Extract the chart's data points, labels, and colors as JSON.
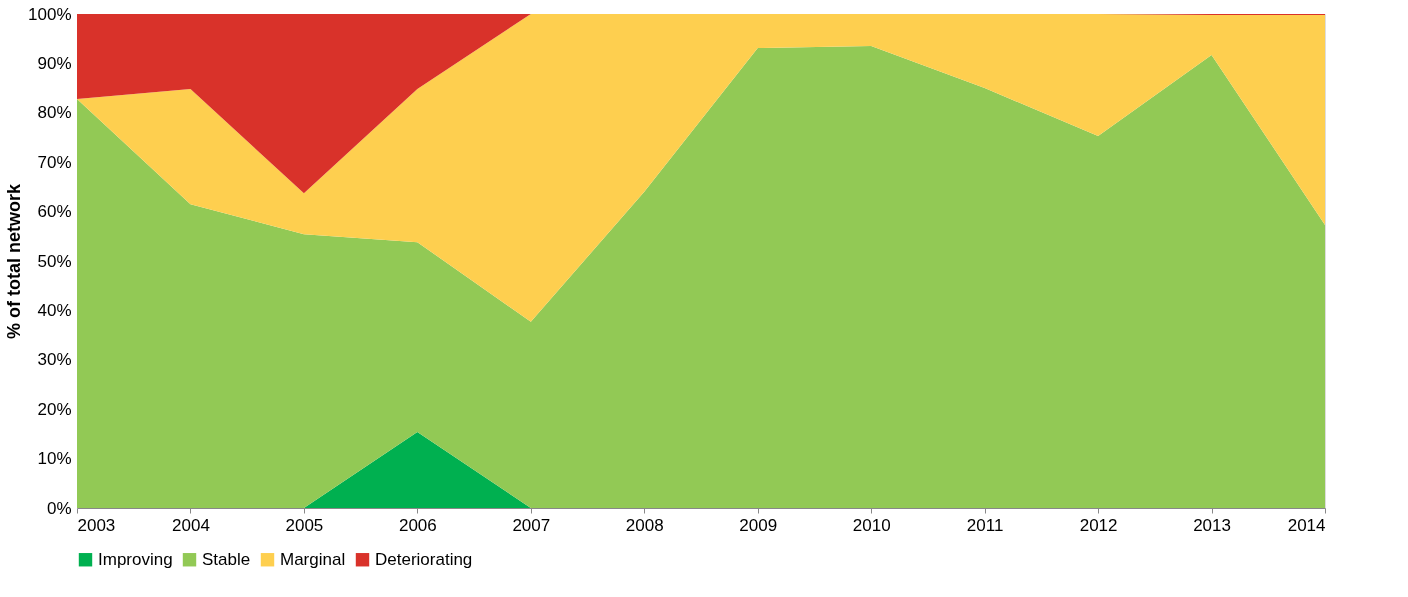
{
  "chart_data": {
    "type": "area",
    "stacked": true,
    "ylabel": "% of total network",
    "categories": [
      "2003",
      "2004",
      "2005",
      "2006",
      "2007",
      "2008",
      "2009",
      "2010",
      "2011",
      "2012",
      "2013",
      "2014"
    ],
    "series": [
      {
        "name": "Improving",
        "color": "#00b050",
        "values": [
          0,
          0,
          0,
          15.4,
          0,
          0,
          0,
          0,
          0,
          0,
          0,
          0
        ]
      },
      {
        "name": "Stable",
        "color": "#92c955",
        "values": [
          82.8,
          61.5,
          55.4,
          38.4,
          37.7,
          64,
          93.1,
          93.5,
          85,
          75.3,
          91.7,
          57.3
        ]
      },
      {
        "name": "Marginal",
        "color": "#fecf4f",
        "values": [
          0,
          23.3,
          8.3,
          31,
          62.3,
          36,
          6.9,
          6.5,
          15,
          24.7,
          8.1,
          42.5
        ]
      },
      {
        "name": "Deteriorating",
        "color": "#d9322a",
        "values": [
          17.2,
          15.2,
          36.3,
          15.2,
          0,
          0,
          0,
          0,
          0,
          0,
          0.2,
          0.2
        ]
      }
    ],
    "ylim": [
      0,
      100
    ],
    "yticks": [
      {
        "value": 0,
        "label": "0%"
      },
      {
        "value": 10,
        "label": "10%"
      },
      {
        "value": 20,
        "label": "20%"
      },
      {
        "value": 30,
        "label": "30%"
      },
      {
        "value": 40,
        "label": "40%"
      },
      {
        "value": 50,
        "label": "50%"
      },
      {
        "value": 60,
        "label": "60%"
      },
      {
        "value": 70,
        "label": "70%"
      },
      {
        "value": 80,
        "label": "80%"
      },
      {
        "value": 90,
        "label": "90%"
      },
      {
        "value": 100,
        "label": "100%"
      }
    ],
    "grid": false,
    "legend": "bottom"
  }
}
